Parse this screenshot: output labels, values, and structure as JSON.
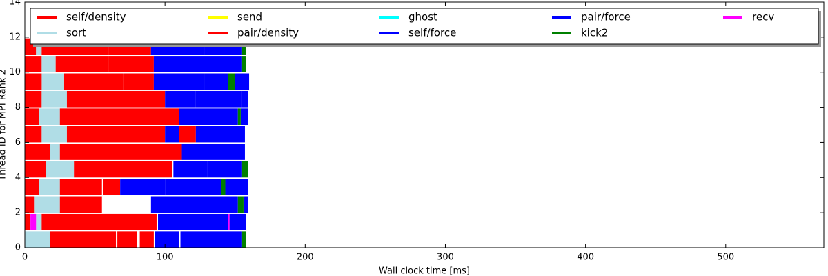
{
  "chart_data": {
    "type": "task-timeline",
    "xlabel": "Wall clock time [ms]",
    "ylabel": "Thread ID for MPI Rank 2",
    "xlim": [
      0,
      570
    ],
    "xticks": [
      0,
      100,
      200,
      300,
      400,
      500
    ],
    "ylim": [
      0,
      14
    ],
    "yticks": [
      0,
      2,
      4,
      6,
      8,
      10,
      12,
      14
    ],
    "legend_position": "top",
    "series": [
      {
        "name": "self/density",
        "color": "#ff0000",
        "threads": [
          0,
          1,
          3,
          3,
          4,
          5,
          5,
          6,
          6,
          7,
          8,
          8,
          9,
          10,
          10,
          11,
          11
        ],
        "starts": [
          66,
          48,
          0,
          56,
          35,
          0,
          80,
          0,
          75,
          80,
          0,
          75,
          28,
          0,
          60,
          0,
          60
        ],
        "ends": [
          80,
          94,
          10,
          68,
          80,
          18,
          112,
          12,
          100,
          110,
          12,
          100,
          70,
          12,
          92,
          8,
          90
        ]
      },
      {
        "name": "sort",
        "color": "#b0dde6",
        "threads": [
          0,
          1,
          2,
          3,
          4,
          5,
          6,
          7,
          8,
          9,
          10,
          11
        ],
        "starts": [
          0,
          8,
          7,
          10,
          15,
          18,
          12,
          10,
          12,
          12,
          12,
          8
        ],
        "ends": [
          18,
          12,
          25,
          25,
          35,
          25,
          30,
          25,
          30,
          28,
          22,
          12
        ]
      },
      {
        "name": "send",
        "color": "#ffff00",
        "threads": [],
        "starts": [],
        "ends": []
      },
      {
        "name": "pair/density",
        "color": "#ff0000",
        "threads": [
          0,
          0,
          1,
          1,
          2,
          2,
          3,
          4,
          4,
          5,
          6,
          6,
          7,
          7,
          8,
          9,
          9,
          10,
          11
        ],
        "starts": [
          18,
          82,
          0,
          12,
          0,
          25,
          25,
          0,
          80,
          25,
          30,
          110,
          0,
          25,
          30,
          0,
          70,
          22,
          12
        ],
        "ends": [
          65,
          92,
          4,
          48,
          7,
          55,
          55,
          15,
          105,
          80,
          75,
          122,
          10,
          80,
          75,
          12,
          92,
          60,
          60
        ]
      },
      {
        "name": "ghost",
        "color": "#00ffff",
        "threads": [],
        "starts": [],
        "ends": []
      },
      {
        "name": "self/force",
        "color": "#0000ff",
        "threads": [
          0,
          1,
          2,
          3,
          4,
          5,
          6,
          7,
          8,
          9,
          11
        ],
        "starts": [
          111,
          146,
          115,
          100,
          130,
          120,
          122,
          118,
          122,
          128,
          128
        ],
        "ends": [
          155,
          158,
          152,
          140,
          155,
          157,
          157,
          152,
          155,
          145,
          155
        ]
      },
      {
        "name": "pair/force",
        "color": "#0000ff",
        "threads": [
          0,
          1,
          2,
          2,
          3,
          3,
          4,
          5,
          6,
          7,
          7,
          8,
          8,
          9,
          9,
          10,
          11
        ],
        "starts": [
          93,
          95,
          90,
          156,
          68,
          143,
          106,
          112,
          100,
          110,
          154,
          100,
          155,
          92,
          150,
          92,
          90
        ],
        "ends": [
          110,
          145,
          115,
          159,
          100,
          159,
          130,
          120,
          110,
          118,
          159,
          122,
          159,
          128,
          160,
          155,
          128
        ]
      },
      {
        "name": "kick2",
        "color": "#008000",
        "threads": [
          0,
          2,
          3,
          4,
          7,
          9,
          10,
          11
        ],
        "starts": [
          155,
          152,
          140,
          155,
          152,
          145,
          155,
          155
        ],
        "ends": [
          158,
          156,
          143,
          159,
          154,
          150,
          158,
          158
        ]
      },
      {
        "name": "recv",
        "color": "#ff00ff",
        "threads": [
          1,
          1
        ],
        "starts": [
          4,
          145
        ],
        "ends": [
          8,
          146
        ]
      }
    ]
  }
}
